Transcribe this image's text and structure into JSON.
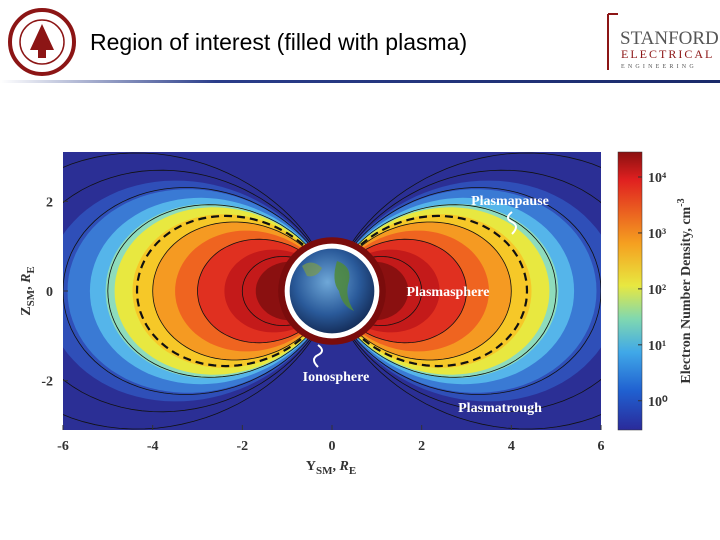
{
  "header": {
    "title": "Region of interest (filled with plasma)",
    "logo": {
      "line1": "STANFORD",
      "line2": "ELECTRICAL",
      "line3": "ENGINEERING"
    }
  },
  "figure": {
    "xlabel": {
      "var": "Y",
      "sub": "SM",
      "unit": "R",
      "unit_sub": "E"
    },
    "ylabel": {
      "var": "Z",
      "sub": "SM",
      "unit": "R",
      "unit_sub": "E"
    },
    "xlim": [
      -6,
      6
    ],
    "ylim": [
      -3.1,
      3.1
    ],
    "xticks": [
      -6,
      -4,
      -2,
      0,
      2,
      4,
      6
    ],
    "yticks": [
      -2,
      0,
      2
    ],
    "annotations": [
      "Plasmapause",
      "Plasmasphere",
      "Ionosphere",
      "Plasmatrough"
    ],
    "colorbar": {
      "label": "Electron Number Density, cm",
      "label_sup": "-3",
      "scale": "log",
      "lim": [
        0.3,
        28000
      ],
      "ticks": [
        {
          "value": 1,
          "label": "10⁰"
        },
        {
          "value": 10,
          "label": "10¹"
        },
        {
          "value": 100,
          "label": "10²"
        },
        {
          "value": 1000,
          "label": "10³"
        },
        {
          "value": 10000,
          "label": "10⁴"
        }
      ]
    }
  }
}
